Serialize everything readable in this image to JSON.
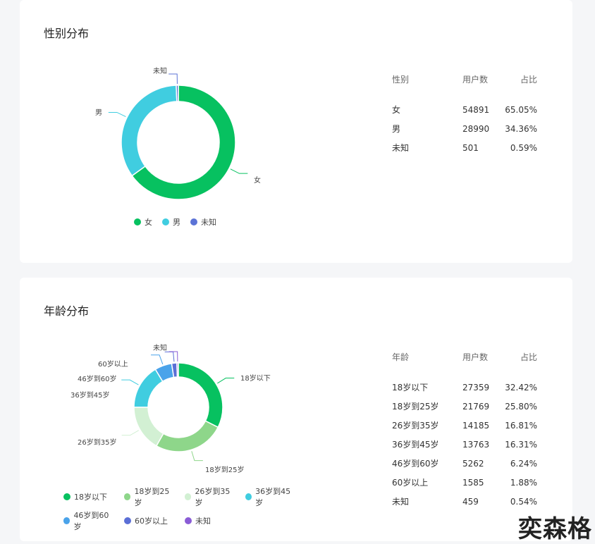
{
  "gender": {
    "title": "性别分布",
    "table_headers": [
      "性别",
      "用户数",
      "占比"
    ],
    "rows": [
      [
        "女",
        "54891",
        "65.05%"
      ],
      [
        "男",
        "28990",
        "34.36%"
      ],
      [
        "未知",
        "501",
        "0.59%"
      ]
    ]
  },
  "age": {
    "title": "年龄分布",
    "table_headers": [
      "年龄",
      "用户数",
      "占比"
    ],
    "rows": [
      [
        "18岁以下",
        "27359",
        "32.42%"
      ],
      [
        "18岁到25岁",
        "21769",
        "25.80%"
      ],
      [
        "26岁到35岁",
        "14185",
        "16.81%"
      ],
      [
        "36岁到45岁",
        "13763",
        "16.31%"
      ],
      [
        "46岁到60岁",
        "5262",
        "6.24%"
      ],
      [
        "60岁以上",
        "1585",
        "1.88%"
      ],
      [
        "未知",
        "459",
        "0.54%"
      ]
    ]
  },
  "chart_data": [
    {
      "type": "pie",
      "donut": true,
      "title": "性别分布",
      "legend": "bottom",
      "categories": [
        "女",
        "男",
        "未知"
      ],
      "values": [
        54891,
        28990,
        501
      ],
      "colors": [
        "#07c160",
        "#40cde0",
        "#5b73d6"
      ]
    },
    {
      "type": "pie",
      "donut": true,
      "title": "年龄分布",
      "legend": "bottom",
      "categories": [
        "18岁以下",
        "18岁到25岁",
        "26岁到35岁",
        "36岁到45岁",
        "46岁到60岁",
        "60岁以上",
        "未知"
      ],
      "values": [
        27359,
        21769,
        14185,
        13763,
        5262,
        1585,
        459
      ],
      "colors": [
        "#07c160",
        "#8ed68a",
        "#d2f0d3",
        "#40cde0",
        "#4aa3ea",
        "#5b6fd6",
        "#8a5cd6"
      ]
    }
  ],
  "watermark": "奕森格"
}
